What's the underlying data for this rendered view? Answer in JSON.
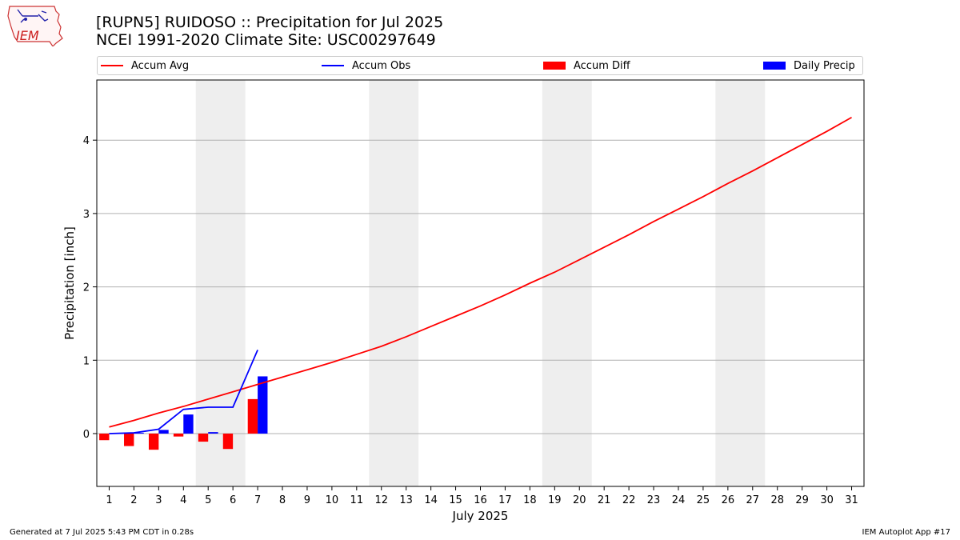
{
  "header": {
    "title_line1": "[RUPN5] RUIDOSO :: Precipitation for Jul 2025",
    "title_line2": "NCEI 1991-2020 Climate Site: USC00297649",
    "logo_text": "IEM"
  },
  "colors": {
    "avg": "#ff0000",
    "obs": "#0000ff",
    "diff": "#ff0000",
    "daily": "#0000ff",
    "weekend": "#eeeeee",
    "grid": "#b0b0b0"
  },
  "legend": [
    {
      "label": "Accum Avg",
      "kind": "line",
      "color": "#ff0000"
    },
    {
      "label": "Accum Obs",
      "kind": "line",
      "color": "#0000ff"
    },
    {
      "label": "Accum Diff",
      "kind": "box",
      "color": "#ff0000"
    },
    {
      "label": "Daily Precip",
      "kind": "box",
      "color": "#0000ff"
    }
  ],
  "chart_data": {
    "type": "bar",
    "title": "[RUPN5] RUIDOSO :: Precipitation for Jul 2025",
    "subtitle": "NCEI 1991-2020 Climate Site: USC00297649",
    "xlabel": "July 2025",
    "ylabel": "Precipitation [inch]",
    "xlim": [
      0.5,
      31.5
    ],
    "ylim": [
      -0.72,
      4.82
    ],
    "yticks": [
      0,
      1,
      2,
      3,
      4
    ],
    "x": [
      1,
      2,
      3,
      4,
      5,
      6,
      7,
      8,
      9,
      10,
      11,
      12,
      13,
      14,
      15,
      16,
      17,
      18,
      19,
      20,
      21,
      22,
      23,
      24,
      25,
      26,
      27,
      28,
      29,
      30,
      31
    ],
    "weekend_spans": [
      [
        4.5,
        6.5
      ],
      [
        11.5,
        13.5
      ],
      [
        18.5,
        20.5
      ],
      [
        25.5,
        27.5
      ]
    ],
    "series": [
      {
        "name": "Accum Avg",
        "kind": "line",
        "values": [
          0.09,
          0.18,
          0.28,
          0.37,
          0.47,
          0.57,
          0.67,
          0.77,
          0.87,
          0.97,
          1.08,
          1.19,
          1.32,
          1.46,
          1.6,
          1.74,
          1.89,
          2.05,
          2.2,
          2.37,
          2.54,
          2.71,
          2.89,
          3.06,
          3.23,
          3.41,
          3.58,
          3.76,
          3.94,
          4.12,
          4.31
        ]
      },
      {
        "name": "Accum Obs",
        "kind": "line",
        "x": [
          1,
          2,
          3,
          4,
          5,
          6,
          7
        ],
        "values": [
          0.0,
          0.01,
          0.06,
          0.33,
          0.36,
          0.36,
          1.14
        ]
      },
      {
        "name": "Accum Diff",
        "kind": "bar",
        "x": [
          1,
          2,
          3,
          4,
          5,
          6,
          7
        ],
        "values": [
          -0.09,
          -0.17,
          -0.22,
          -0.04,
          -0.11,
          -0.21,
          0.47
        ]
      },
      {
        "name": "Daily Precip",
        "kind": "bar",
        "x": [
          1,
          2,
          3,
          4,
          5,
          6,
          7
        ],
        "values": [
          0.0,
          0.01,
          0.05,
          0.26,
          0.02,
          0.0,
          0.78
        ]
      }
    ]
  },
  "footer": {
    "generated": "Generated at 7 Jul 2025 5:43 PM CDT in 0.28s",
    "app": "IEM Autoplot App #17"
  }
}
